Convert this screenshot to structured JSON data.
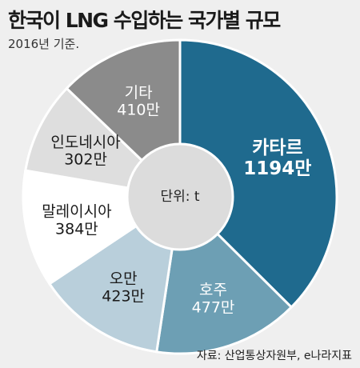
{
  "header": {
    "title": "한국이 LNG 수입하는 국가별 규모",
    "subtitle": "2016년 기준."
  },
  "footer": {
    "source": "자료: 산업통상자원부, e나라지표"
  },
  "chart_data": {
    "type": "pie",
    "center_label": "단위: t",
    "unit": "만",
    "slices": [
      {
        "label": "카타르",
        "value": 1194,
        "value_text": "1194만",
        "color": "#1f6a8e",
        "text_color": "#ffffff",
        "bold": true
      },
      {
        "label": "호주",
        "value": 477,
        "value_text": "477만",
        "color": "#6d9fb4",
        "text_color": "#ffffff",
        "bold": false
      },
      {
        "label": "오만",
        "value": 423,
        "value_text": "423만",
        "color": "#b9cfdb",
        "text_color": "#1a1a1a",
        "bold": false
      },
      {
        "label": "말레이시아",
        "value": 384,
        "value_text": "384만",
        "color": "#ffffff",
        "text_color": "#1a1a1a",
        "bold": false
      },
      {
        "label": "인도네시아",
        "value": 302,
        "value_text": "302만",
        "color": "#dedede",
        "text_color": "#1a1a1a",
        "bold": false
      },
      {
        "label": "기타",
        "value": 410,
        "value_text": "410만",
        "color": "#8b8b8b",
        "text_color": "#ffffff",
        "bold": false
      }
    ]
  }
}
